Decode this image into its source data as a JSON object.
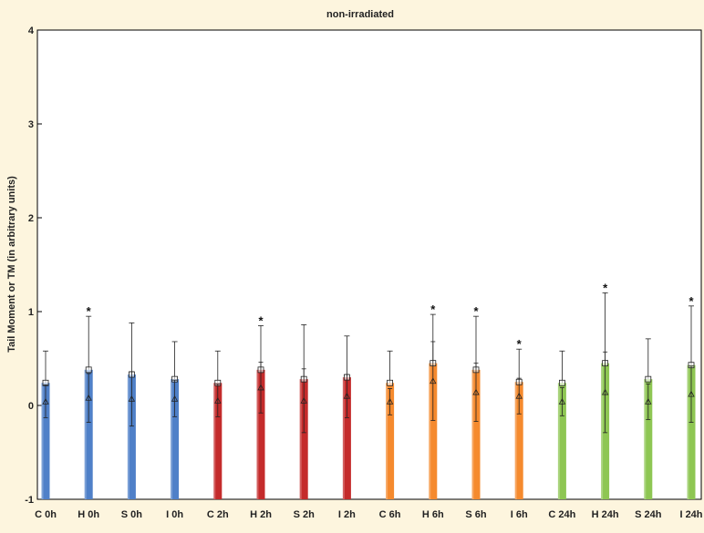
{
  "chart_data": {
    "type": "bar",
    "title": "non-irradiated",
    "xlabel": "",
    "ylabel": "Tail Moment or TM (in arbitrary units)",
    "ylim": [
      -1,
      4
    ],
    "yticks": [
      "-1",
      "0",
      "1",
      "2",
      "3",
      "4"
    ],
    "grid": false,
    "categories": [
      "C 0h",
      "H 0h",
      "S 0h",
      "I 0h",
      "C 2h",
      "H 2h",
      "S 2h",
      "I 2h",
      "C 6h",
      "H 6h",
      "S 6h",
      "I 6h",
      "C 24h",
      "H 24h",
      "S 24h",
      "I 24h"
    ],
    "series": [
      {
        "values": [
          0.24,
          0.38,
          0.33,
          0.28,
          0.24,
          0.38,
          0.28,
          0.3,
          0.24,
          0.45,
          0.38,
          0.25,
          0.24,
          0.45,
          0.28,
          0.43
        ],
        "error_upper": [
          0.58,
          0.95,
          0.88,
          0.68,
          0.58,
          0.85,
          0.86,
          0.74,
          0.58,
          0.97,
          0.95,
          0.6,
          0.58,
          1.2,
          0.71,
          1.06
        ],
        "median": [
          0.04,
          0.08,
          0.07,
          0.07,
          0.05,
          0.19,
          0.05,
          0.1,
          0.04,
          0.26,
          0.14,
          0.1,
          0.04,
          0.14,
          0.04,
          0.12
        ],
        "whisker_low": [
          -0.13,
          -0.18,
          -0.22,
          -0.12,
          -0.12,
          -0.08,
          -0.29,
          -0.13,
          -0.1,
          -0.16,
          -0.17,
          -0.09,
          -0.11,
          -0.29,
          -0.15,
          -0.18
        ],
        "whisker_high": [
          0.22,
          0.34,
          0.36,
          0.27,
          0.23,
          0.46,
          0.39,
          0.33,
          0.18,
          0.68,
          0.45,
          0.29,
          0.19,
          0.57,
          0.23,
          0.42
        ]
      }
    ],
    "bar_colors": [
      "#4f80c8",
      "#4f80c8",
      "#4f80c8",
      "#4f80c8",
      "#c42b2b",
      "#c42b2b",
      "#c42b2b",
      "#c42b2b",
      "#f58a2e",
      "#f58a2e",
      "#f58a2e",
      "#f58a2e",
      "#8ec653",
      "#8ec653",
      "#8ec653",
      "#8ec653"
    ],
    "significance_marker": "*",
    "significant": [
      false,
      true,
      false,
      false,
      false,
      true,
      false,
      false,
      false,
      true,
      true,
      true,
      false,
      true,
      false,
      true
    ]
  }
}
